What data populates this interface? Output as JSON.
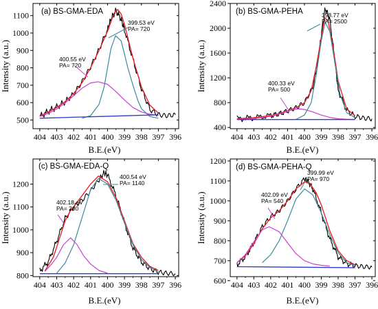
{
  "chart_data": [
    {
      "type": "line",
      "title": "(a) BS-GMA-EDA",
      "xlabel": "B.E.(eV)",
      "ylabel": "Intensity (a.u.)",
      "x_reversed": true,
      "xlim": [
        404.4,
        395.8
      ],
      "ylim": [
        450,
        1170
      ],
      "xticks": [
        404,
        403,
        402,
        401,
        400,
        399,
        398,
        397,
        396
      ],
      "yticks": [
        500,
        600,
        700,
        800,
        900,
        1000,
        1100
      ],
      "colors": {
        "raw": "#000000",
        "fit": "#e8242b",
        "peak1": "#3a8a9b",
        "peak2": "#c73fd1",
        "baseline": "#2a3cc8"
      },
      "series": [
        {
          "name": "raw",
          "x": [
            404.0,
            403.5,
            403.0,
            402.5,
            402.0,
            401.5,
            401.0,
            400.5,
            400.0,
            399.8,
            399.5,
            399.2,
            399.0,
            398.5,
            398.0,
            397.5,
            397.0,
            396.5,
            396.0
          ],
          "y": [
            520,
            550,
            575,
            605,
            650,
            720,
            805,
            905,
            1020,
            1080,
            1130,
            1080,
            1020,
            850,
            680,
            560,
            530,
            525,
            530
          ]
        },
        {
          "name": "fit",
          "x": [
            404.0,
            403.5,
            403.0,
            402.5,
            402.0,
            401.5,
            401.0,
            400.5,
            400.0,
            399.8,
            399.6,
            399.4,
            399.2,
            399.0,
            398.5,
            398.0,
            397.5,
            397.0
          ],
          "y": [
            523,
            546,
            572,
            606,
            652,
            715,
            800,
            900,
            1010,
            1065,
            1115,
            1135,
            1110,
            1050,
            855,
            690,
            585,
            540
          ]
        },
        {
          "name": "peak 399.53 eV",
          "x": [
            401.5,
            401.0,
            400.5,
            400.2,
            400.0,
            399.8,
            399.53,
            399.2,
            399.0,
            398.8,
            398.5,
            398.2,
            398.0,
            397.5,
            397.0
          ],
          "y": [
            510,
            525,
            590,
            690,
            800,
            910,
            985,
            955,
            880,
            800,
            700,
            610,
            565,
            520,
            510
          ]
        },
        {
          "name": "peak 400.55 eV",
          "x": [
            404.0,
            403.5,
            403.0,
            402.5,
            402.0,
            401.5,
            401.0,
            400.55,
            400.0,
            399.5,
            399.0,
            398.5,
            398.0,
            397.5,
            397.0
          ],
          "y": [
            520,
            538,
            563,
            598,
            640,
            683,
            713,
            720,
            705,
            663,
            615,
            572,
            546,
            533,
            527
          ]
        },
        {
          "name": "baseline",
          "x": [
            404.0,
            397.0
          ],
          "y": [
            510,
            530
          ]
        }
      ],
      "annotations": [
        {
          "text": "399.53 eV",
          "sub": "PA= 720"
        },
        {
          "text": "400.55 eV",
          "sub": "PA= 720"
        }
      ]
    },
    {
      "type": "line",
      "title": "(b) BS-GMA-PEHA",
      "xlabel": "B.E.(eV)",
      "ylabel": "Intensity (a.u.)",
      "x_reversed": true,
      "xlim": [
        404.4,
        395.8
      ],
      "ylim": [
        380,
        2400
      ],
      "xticks": [
        404,
        403,
        402,
        401,
        400,
        399,
        398,
        397,
        396
      ],
      "yticks": [
        400,
        800,
        1200,
        1600,
        2000,
        2400
      ],
      "colors": {
        "raw": "#000000",
        "fit": "#e8242b",
        "peak1": "#3a8a9b",
        "peak2": "#c73fd1",
        "baseline": "#2a3cc8"
      },
      "series": [
        {
          "name": "raw",
          "x": [
            404.0,
            403.0,
            402.0,
            401.5,
            401.0,
            400.5,
            400.0,
            399.5,
            399.2,
            399.0,
            398.77,
            398.5,
            398.2,
            398.0,
            397.5,
            397.0,
            396.5,
            396.0
          ],
          "y": [
            540,
            555,
            590,
            620,
            665,
            720,
            800,
            1050,
            1450,
            1900,
            2320,
            2150,
            1500,
            1000,
            680,
            580,
            550,
            540
          ]
        },
        {
          "name": "fit",
          "x": [
            404.0,
            403.0,
            402.0,
            401.5,
            401.0,
            400.5,
            400.0,
            399.6,
            399.3,
            399.0,
            398.8,
            398.6,
            398.3,
            398.0,
            397.5,
            397.0
          ],
          "y": [
            540,
            558,
            592,
            625,
            668,
            720,
            800,
            990,
            1380,
            1850,
            2170,
            2120,
            1700,
            1150,
            700,
            590
          ]
        },
        {
          "name": "peak 398.77 eV",
          "x": [
            400.5,
            400.0,
            399.6,
            399.3,
            399.0,
            398.77,
            398.5,
            398.2,
            397.9,
            397.5,
            397.0
          ],
          "y": [
            530,
            600,
            800,
            1250,
            1800,
            2100,
            1950,
            1450,
            950,
            640,
            560
          ]
        },
        {
          "name": "peak 400.33 eV",
          "x": [
            404.0,
            403.0,
            402.0,
            401.5,
            401.0,
            400.7,
            400.33,
            400.0,
            399.5,
            399.0,
            398.5,
            398.0,
            397.5,
            397.0
          ],
          "y": [
            532,
            542,
            580,
            615,
            660,
            690,
            700,
            690,
            650,
            600,
            562,
            540,
            533,
            530
          ]
        },
        {
          "name": "baseline",
          "x": [
            404.0,
            397.0
          ],
          "y": [
            528,
            528
          ]
        }
      ],
      "annotations": [
        {
          "text": "398.77 eV",
          "sub": "PA= 2500"
        },
        {
          "text": "400.33 eV",
          "sub": "PA= 500"
        }
      ]
    },
    {
      "type": "line",
      "title": "(c) BS-GMA-EDA-Q",
      "xlabel": "B.E.(eV)",
      "ylabel": "Intensity (a.u.)",
      "x_reversed": true,
      "xlim": [
        404.4,
        395.8
      ],
      "ylim": [
        795,
        1310
      ],
      "xticks": [
        404,
        403,
        402,
        401,
        400,
        399,
        398,
        397,
        396
      ],
      "yticks": [
        800,
        900,
        1000,
        1100,
        1200
      ],
      "colors": {
        "raw": "#000000",
        "fit": "#e8242b",
        "peak1": "#3a8a9b",
        "peak2": "#c73fd1",
        "baseline": "#2a3cc8"
      },
      "series": [
        {
          "name": "raw",
          "x": [
            404.0,
            403.5,
            403.0,
            402.5,
            402.0,
            401.5,
            401.0,
            400.5,
            400.2,
            400.0,
            399.5,
            399.0,
            398.5,
            398.0,
            397.5,
            397.0,
            396.5,
            396.0
          ],
          "y": [
            820,
            860,
            950,
            1050,
            1100,
            1130,
            1170,
            1220,
            1250,
            1240,
            1150,
            1030,
            920,
            860,
            830,
            815,
            810,
            808
          ]
        },
        {
          "name": "fit",
          "x": [
            403.7,
            403.2,
            402.8,
            402.5,
            402.2,
            402.0,
            401.5,
            401.0,
            400.54,
            400.0,
            399.5,
            399.0,
            398.5,
            398.0,
            397.5,
            397.0
          ],
          "y": [
            820,
            880,
            970,
            1040,
            1082,
            1100,
            1150,
            1200,
            1235,
            1210,
            1140,
            1040,
            940,
            880,
            840,
            822
          ]
        },
        {
          "name": "peak 400.54 eV",
          "x": [
            403.0,
            402.5,
            402.0,
            401.5,
            401.0,
            400.54,
            400.0,
            399.5,
            399.0,
            398.5,
            398.0,
            397.5,
            397.0
          ],
          "y": [
            810,
            855,
            935,
            1055,
            1175,
            1225,
            1200,
            1130,
            1030,
            935,
            870,
            835,
            815
          ]
        },
        {
          "name": "peak 402.18 eV",
          "x": [
            403.7,
            403.3,
            403.0,
            402.6,
            402.18,
            401.8,
            401.4,
            401.0,
            400.5,
            400.0
          ],
          "y": [
            818,
            850,
            880,
            935,
            965,
            935,
            885,
            850,
            822,
            810
          ]
        },
        {
          "name": "baseline",
          "x": [
            404.0,
            397.0
          ],
          "y": [
            808,
            808
          ]
        }
      ],
      "annotations": [
        {
          "text": "400.54 eV",
          "sub": "PA= 1140"
        },
        {
          "text": "402.18 eV",
          "sub": "PA= 200"
        }
      ]
    },
    {
      "type": "line",
      "title": "(d) BS-GMA-PEHA-Q",
      "xlabel": "B.E.(eV)",
      "ylabel": "Intensity (a.u.)",
      "x_reversed": true,
      "xlim": [
        404.4,
        395.8
      ],
      "ylim": [
        620,
        1210
      ],
      "xticks": [
        404,
        403,
        402,
        401,
        400,
        399,
        398,
        397,
        396
      ],
      "yticks": [
        600,
        700,
        800,
        900,
        1000,
        1100,
        1200
      ],
      "colors": {
        "raw": "#000000",
        "fit": "#e8242b",
        "peak1": "#3a8a9b",
        "peak2": "#c73fd1",
        "baseline": "#2a3cc8"
      },
      "series": [
        {
          "name": "raw",
          "x": [
            404.0,
            403.5,
            403.0,
            402.5,
            402.0,
            401.5,
            401.0,
            400.5,
            400.0,
            399.8,
            399.5,
            399.0,
            398.5,
            398.0,
            397.5,
            397.0,
            396.5,
            396.0
          ],
          "y": [
            680,
            720,
            790,
            870,
            920,
            950,
            1000,
            1060,
            1110,
            1100,
            1060,
            940,
            810,
            720,
            685,
            675,
            670,
            668
          ]
        },
        {
          "name": "fit",
          "x": [
            404.0,
            403.5,
            403.0,
            402.5,
            402.0,
            401.5,
            401.0,
            400.5,
            400.0,
            399.7,
            399.3,
            399.0,
            398.5,
            398.0,
            397.5,
            397.0
          ],
          "y": [
            690,
            725,
            785,
            860,
            915,
            950,
            1000,
            1060,
            1095,
            1090,
            1040,
            980,
            850,
            750,
            700,
            680
          ]
        },
        {
          "name": "peak 399.99 eV",
          "x": [
            402.5,
            402.0,
            401.5,
            401.0,
            400.5,
            399.99,
            399.5,
            399.0,
            398.5,
            398.0,
            397.5,
            397.0
          ],
          "y": [
            690,
            730,
            800,
            900,
            1010,
            1060,
            1030,
            940,
            830,
            740,
            690,
            675
          ]
        },
        {
          "name": "peak 402.09 eV",
          "x": [
            404.0,
            403.5,
            403.0,
            402.5,
            402.09,
            401.5,
            401.0,
            400.5,
            400.0,
            399.5,
            399.0,
            398.5
          ],
          "y": [
            690,
            730,
            795,
            855,
            870,
            845,
            790,
            735,
            700,
            684,
            677,
            673
          ]
        },
        {
          "name": "baseline",
          "x": [
            404.0,
            397.0
          ],
          "y": [
            670,
            665
          ]
        }
      ],
      "annotations": [
        {
          "text": "399.99 eV",
          "sub": "PA= 970"
        },
        {
          "text": "402.09 eV",
          "sub": "PA= 540"
        }
      ]
    }
  ]
}
